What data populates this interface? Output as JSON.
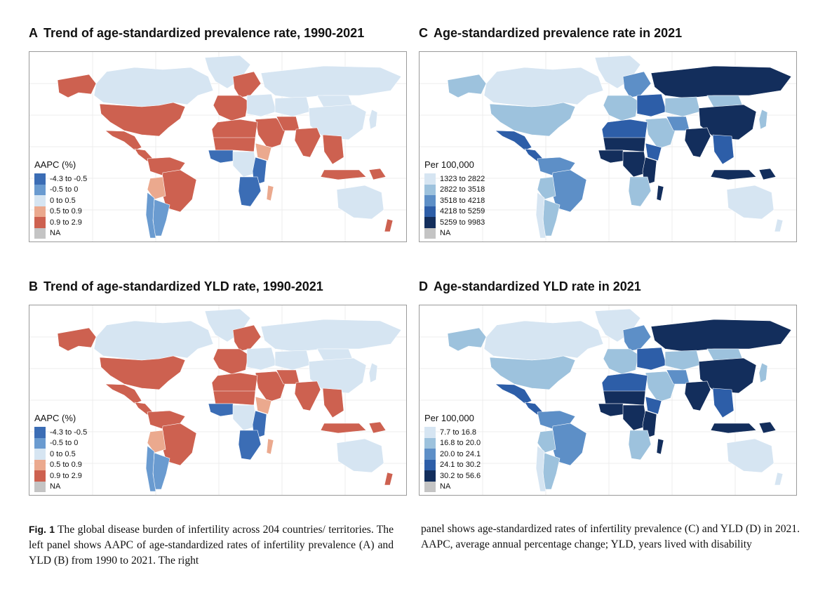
{
  "panels": [
    {
      "id": "A",
      "letter": "A",
      "title": "Trend of age-standardized prevalence rate, 1990-2021",
      "legend_title": "AAPC (%)",
      "legend": [
        {
          "label": "-4.3 to -0.5",
          "color": "#3b6db5"
        },
        {
          "label": "-0.5 to 0",
          "color": "#6a9bd0"
        },
        {
          "label": "0 to 0.5",
          "color": "#d6e5f2"
        },
        {
          "label": "0.5 to 0.9",
          "color": "#eba98e"
        },
        {
          "label": "0.9 to 2.9",
          "color": "#cd6150"
        },
        {
          "label": "NA",
          "color": "#c4c4c4"
        }
      ],
      "scheme": "diverging"
    },
    {
      "id": "C",
      "letter": "C",
      "title": "Age-standardized prevalence rate in 2021",
      "legend_title": "Per 100,000",
      "legend": [
        {
          "label": "1323 to 2822",
          "color": "#d6e5f2"
        },
        {
          "label": "2822 to 3518",
          "color": "#9dc2dd"
        },
        {
          "label": "3518 to 4218",
          "color": "#5d8fc7"
        },
        {
          "label": "4218 to 5259",
          "color": "#2d5ea8"
        },
        {
          "label": "5259 to 9983",
          "color": "#132e5c"
        },
        {
          "label": "NA",
          "color": "#c4c4c4"
        }
      ],
      "scheme": "sequential"
    },
    {
      "id": "B",
      "letter": "B",
      "title": "Trend of age-standardized YLD rate, 1990-2021",
      "legend_title": "AAPC (%)",
      "legend": [
        {
          "label": "-4.3 to -0.5",
          "color": "#3b6db5"
        },
        {
          "label": "-0.5 to 0",
          "color": "#6a9bd0"
        },
        {
          "label": "0 to 0.5",
          "color": "#d6e5f2"
        },
        {
          "label": "0.5 to 0.9",
          "color": "#eba98e"
        },
        {
          "label": "0.9 to 2.9",
          "color": "#cd6150"
        },
        {
          "label": "NA",
          "color": "#c4c4c4"
        }
      ],
      "scheme": "diverging"
    },
    {
      "id": "D",
      "letter": "D",
      "title": "Age-standardized YLD rate in 2021",
      "legend_title": "Per 100,000",
      "legend": [
        {
          "label": "7.7 to 16.8",
          "color": "#d6e5f2"
        },
        {
          "label": "16.8 to 20.0",
          "color": "#9dc2dd"
        },
        {
          "label": "20.0 to 24.1",
          "color": "#5d8fc7"
        },
        {
          "label": "24.1 to 30.2",
          "color": "#2d5ea8"
        },
        {
          "label": "30.2 to 56.6",
          "color": "#132e5c"
        },
        {
          "label": "NA",
          "color": "#c4c4c4"
        }
      ],
      "scheme": "sequential"
    }
  ],
  "caption": {
    "fig_label": "Fig. 1",
    "left_text": "The global disease burden of infertility across 204 countries/ territories. The left panel shows AAPC of age-standardized rates of infertility prevalence (A) and YLD (B) from 1990 to 2021. The right",
    "right_text": "panel shows age-standardized rates of infertility prevalence (C) and YLD (D) in 2021. AAPC, average annual percentage change; YLD, years lived with disability"
  },
  "region_classes": {
    "diverging": {
      "north_america": 4,
      "canada": 2,
      "alaska": 4,
      "greenland": 2,
      "mexico": 4,
      "central_america": 4,
      "south_america_n": 4,
      "brazil": 4,
      "bolivia": 3,
      "argentina": 1,
      "chile": 1,
      "europe_w": 4,
      "scandinavia": 4,
      "europe_e": 2,
      "russia": 2,
      "middle_east": 4,
      "iran": 4,
      "central_asia": 2,
      "china": 2,
      "mongolia": 2,
      "india": 4,
      "se_asia": 4,
      "indonesia": 4,
      "japan": 2,
      "north_africa": 4,
      "sahel": 4,
      "west_africa": 0,
      "central_africa": 2,
      "east_africa": 0,
      "horn_africa": 3,
      "southern_africa": 0,
      "madagascar": 3,
      "australia": 2,
      "new_zealand": 4,
      "png": 4
    },
    "sequential": {
      "north_america": 1,
      "canada": 0,
      "alaska": 1,
      "greenland": 0,
      "mexico": 3,
      "central_america": 3,
      "south_america_n": 2,
      "brazil": 2,
      "bolivia": 1,
      "argentina": 1,
      "chile": 0,
      "europe_w": 1,
      "scandinavia": 2,
      "europe_e": 3,
      "russia": 4,
      "middle_east": 1,
      "iran": 2,
      "central_asia": 1,
      "china": 4,
      "mongolia": 1,
      "india": 4,
      "se_asia": 3,
      "indonesia": 4,
      "japan": 1,
      "north_africa": 3,
      "sahel": 4,
      "west_africa": 4,
      "central_africa": 4,
      "east_africa": 4,
      "horn_africa": 3,
      "southern_africa": 1,
      "madagascar": 4,
      "australia": 0,
      "new_zealand": 0,
      "png": 4
    }
  }
}
